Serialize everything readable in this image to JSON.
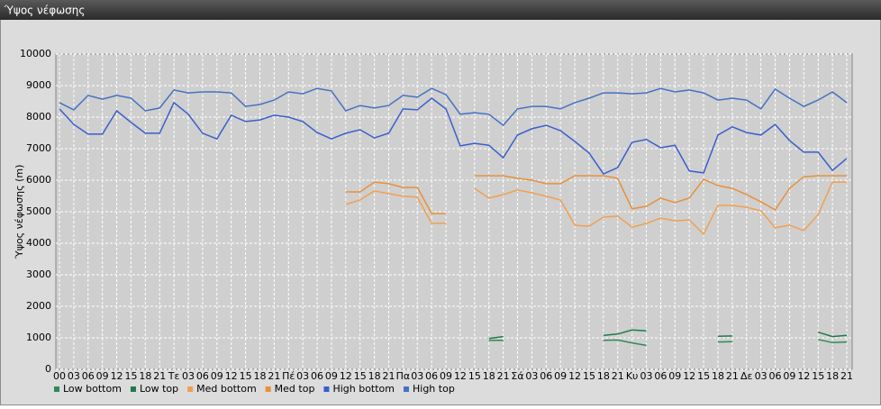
{
  "chart_data": {
    "type": "line",
    "title": "Ύψος νέφωσης",
    "y_label": "Ύψος νέφωσης (m)",
    "categories": [
      "00",
      "03",
      "06",
      "09",
      "12",
      "15",
      "18",
      "21",
      "Τε",
      "03",
      "06",
      "09",
      "12",
      "15",
      "18",
      "21",
      "Πέ",
      "03",
      "06",
      "09",
      "12",
      "15",
      "18",
      "21",
      "Πα",
      "03",
      "06",
      "09",
      "12",
      "15",
      "18",
      "21",
      "Σά",
      "03",
      "06",
      "09",
      "12",
      "15",
      "18",
      "21",
      "Κυ",
      "03",
      "06",
      "09",
      "12",
      "15",
      "18",
      "21",
      "Δε",
      "03",
      "06",
      "09",
      "12",
      "15",
      "18",
      "21"
    ],
    "ylim": [
      0,
      10000
    ],
    "yticks": [
      0,
      1000,
      2000,
      3000,
      4000,
      5000,
      6000,
      7000,
      8000,
      9000,
      10000
    ],
    "grid": true,
    "series": [
      {
        "name": "Low bottom",
        "color": "#2e8b57",
        "values": [
          null,
          null,
          null,
          null,
          null,
          null,
          null,
          null,
          null,
          null,
          null,
          null,
          null,
          null,
          null,
          null,
          null,
          null,
          null,
          null,
          null,
          null,
          null,
          null,
          null,
          null,
          null,
          null,
          null,
          null,
          920,
          920,
          null,
          null,
          null,
          null,
          null,
          null,
          920,
          930,
          840,
          760,
          null,
          null,
          null,
          null,
          870,
          880,
          null,
          null,
          null,
          null,
          null,
          950,
          850,
          870
        ]
      },
      {
        "name": "Low top",
        "color": "#1f7a4a",
        "values": [
          null,
          null,
          null,
          null,
          null,
          null,
          null,
          null,
          null,
          null,
          null,
          null,
          null,
          null,
          null,
          null,
          null,
          null,
          null,
          null,
          null,
          null,
          null,
          null,
          null,
          null,
          null,
          null,
          null,
          null,
          980,
          1040,
          null,
          null,
          null,
          null,
          null,
          null,
          1080,
          1120,
          1250,
          1220,
          null,
          null,
          null,
          null,
          1050,
          1060,
          null,
          null,
          null,
          null,
          null,
          1180,
          1040,
          1080
        ]
      },
      {
        "name": "Med bottom",
        "color": "#f0a050",
        "values": [
          null,
          null,
          null,
          null,
          null,
          null,
          null,
          null,
          null,
          null,
          null,
          null,
          null,
          null,
          null,
          null,
          null,
          null,
          null,
          null,
          5230,
          5370,
          5660,
          5570,
          5490,
          5460,
          4630,
          4630,
          null,
          5740,
          5430,
          5540,
          5690,
          5600,
          5490,
          5370,
          4570,
          4540,
          4830,
          4860,
          4510,
          4630,
          4800,
          4710,
          4740,
          4290,
          5200,
          5200,
          5140,
          5030,
          4490,
          4570,
          4400,
          4910,
          5940,
          5940
        ]
      },
      {
        "name": "Med top",
        "color": "#e8903a",
        "values": [
          null,
          null,
          null,
          null,
          null,
          null,
          null,
          null,
          null,
          null,
          null,
          null,
          null,
          null,
          null,
          null,
          null,
          null,
          null,
          null,
          5630,
          5630,
          5940,
          5890,
          5770,
          5770,
          4940,
          4940,
          null,
          6140,
          6140,
          6140,
          6060,
          6000,
          5890,
          5890,
          6140,
          6140,
          6140,
          6060,
          5090,
          5170,
          5430,
          5290,
          5430,
          6030,
          5830,
          5740,
          5540,
          5310,
          5060,
          5740,
          6110,
          6140,
          6140,
          6140
        ]
      },
      {
        "name": "High bottom",
        "color": "#3a5fcd",
        "values": [
          8260,
          7770,
          7460,
          7460,
          8200,
          7830,
          7490,
          7490,
          8460,
          8090,
          7490,
          7310,
          8060,
          7860,
          7910,
          8060,
          8000,
          7860,
          7510,
          7310,
          7490,
          7600,
          7340,
          7490,
          8260,
          8230,
          8600,
          8260,
          7090,
          7170,
          7110,
          6710,
          7430,
          7630,
          7740,
          7570,
          7230,
          6860,
          6200,
          6400,
          7200,
          7290,
          7030,
          7110,
          6290,
          6230,
          7430,
          7690,
          7510,
          7430,
          7770,
          7260,
          6890,
          6890,
          6310,
          6690
        ]
      },
      {
        "name": "High top",
        "color": "#4472c4",
        "values": [
          8460,
          8230,
          8690,
          8570,
          8690,
          8600,
          8200,
          8290,
          8860,
          8770,
          8800,
          8800,
          8770,
          8340,
          8400,
          8540,
          8800,
          8740,
          8910,
          8830,
          8200,
          8370,
          8290,
          8370,
          8690,
          8630,
          8910,
          8710,
          8090,
          8140,
          8090,
          7740,
          8260,
          8340,
          8340,
          8260,
          8460,
          8600,
          8770,
          8770,
          8740,
          8770,
          8910,
          8800,
          8860,
          8770,
          8540,
          8600,
          8540,
          8260,
          8890,
          8600,
          8340,
          8540,
          8800,
          8460
        ]
      }
    ]
  }
}
